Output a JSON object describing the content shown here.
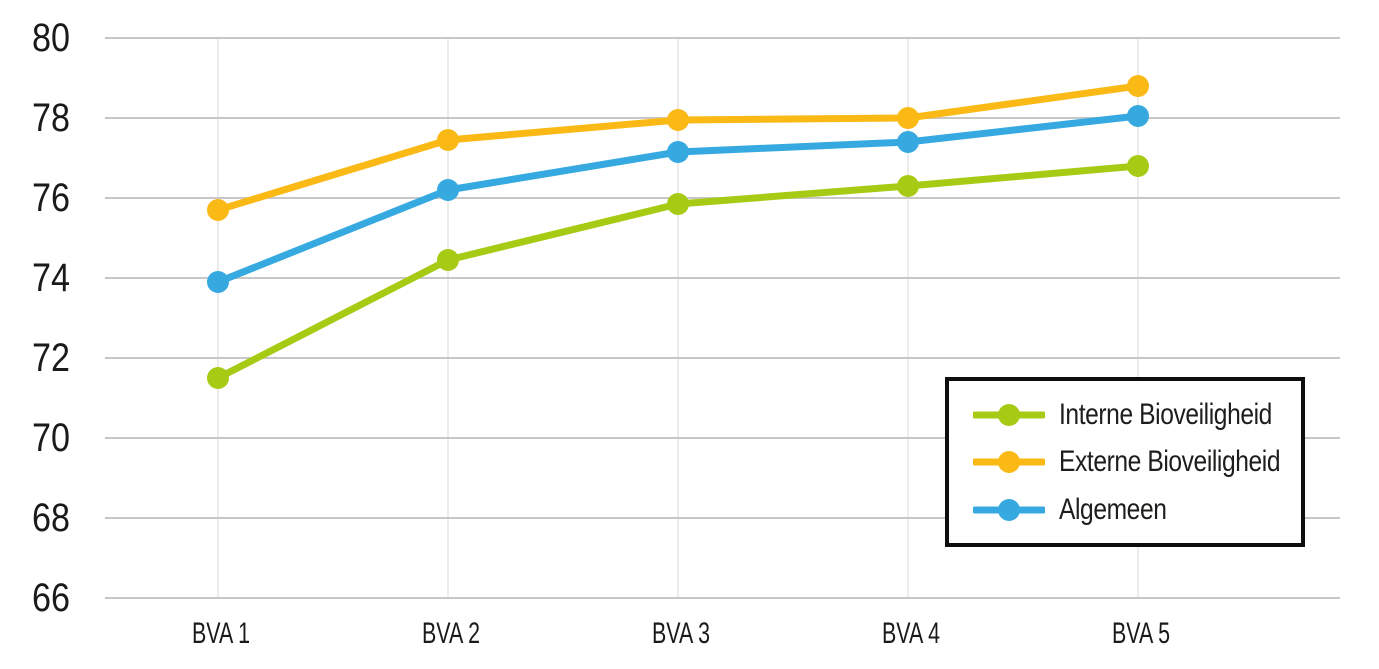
{
  "chart_data": {
    "type": "line",
    "title": "",
    "xlabel": "",
    "ylabel": "",
    "categories": [
      "BVA 1",
      "BVA 2",
      "BVA 3",
      "BVA 4",
      "BVA 5"
    ],
    "series": [
      {
        "name": "Interne Bioveiligheid",
        "color": "#a7cb15",
        "values": [
          71.5,
          74.45,
          75.85,
          76.3,
          76.8
        ]
      },
      {
        "name": "Externe Bioveiligheid",
        "color": "#fab915",
        "values": [
          75.7,
          77.45,
          77.95,
          78.0,
          78.8
        ]
      },
      {
        "name": "Algemeen",
        "color": "#36a9e0",
        "values": [
          73.9,
          76.2,
          77.15,
          77.4,
          78.05
        ]
      }
    ],
    "ylim": [
      66,
      80
    ],
    "ytick_step": 2,
    "ytick_labels": [
      "66",
      "68",
      "70",
      "72",
      "74",
      "76",
      "78",
      "80"
    ],
    "grid": {
      "horizontal": true,
      "vertical": true
    },
    "legend_position": "bottom-right",
    "colors": {
      "background": "#ffffff",
      "horizontal_gridline": "#c7c7c7",
      "vertical_gridline": "#ececec",
      "tick_text": "#1a1a1a",
      "legend_border": "#0e0e0e",
      "legend_text": "#1d1d1b"
    }
  }
}
